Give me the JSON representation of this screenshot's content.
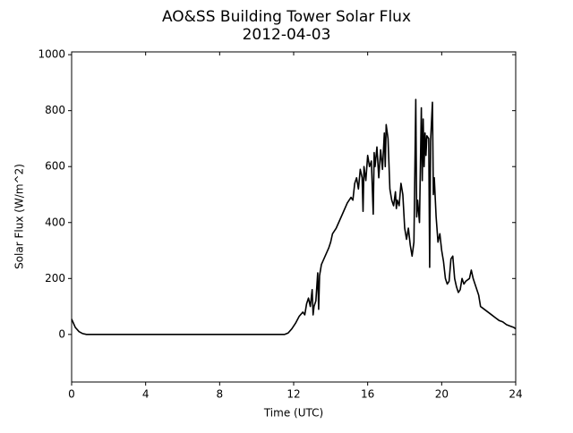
{
  "chart_data": {
    "type": "line",
    "title": "AO&SS Building Tower Solar Flux",
    "subtitle": "2012-04-03",
    "x_label": "Time (UTC)",
    "y_label": "Solar Flux (W/m^2)",
    "xlim": [
      0,
      24
    ],
    "xticks": [
      0,
      4,
      8,
      12,
      16,
      20,
      24
    ],
    "ylim": [
      -170,
      1010
    ],
    "yticks": [
      0,
      200,
      400,
      600,
      800,
      1000
    ],
    "grid": false,
    "series": [
      {
        "name": "Solar Flux",
        "color": "#000000",
        "x": [
          0,
          0.1,
          0.2,
          0.4,
          0.6,
          0.8,
          2,
          4,
          6,
          8,
          10,
          11.5,
          11.7,
          11.9,
          12.1,
          12.3,
          12.5,
          12.6,
          12.7,
          12.8,
          12.9,
          13.0,
          13.05,
          13.1,
          13.2,
          13.3,
          13.35,
          13.4,
          13.5,
          13.7,
          13.9,
          14.0,
          14.1,
          14.3,
          14.5,
          14.7,
          14.9,
          15.1,
          15.2,
          15.3,
          15.4,
          15.5,
          15.6,
          15.7,
          15.75,
          15.8,
          15.9,
          16.0,
          16.1,
          16.2,
          16.3,
          16.35,
          16.4,
          16.5,
          16.6,
          16.7,
          16.8,
          16.9,
          16.95,
          17.0,
          17.1,
          17.2,
          17.3,
          17.4,
          17.5,
          17.55,
          17.6,
          17.7,
          17.8,
          17.9,
          18.0,
          18.1,
          18.2,
          18.3,
          18.4,
          18.5,
          18.6,
          18.65,
          18.7,
          18.8,
          18.9,
          18.95,
          19.0,
          19.05,
          19.1,
          19.15,
          19.2,
          19.3,
          19.35,
          19.4,
          19.5,
          19.55,
          19.6,
          19.7,
          19.8,
          19.9,
          20.0,
          20.1,
          20.2,
          20.3,
          20.4,
          20.5,
          20.6,
          20.7,
          20.8,
          20.9,
          21.0,
          21.1,
          21.2,
          21.3,
          21.5,
          21.6,
          21.7,
          21.8,
          21.9,
          22.0,
          22.1,
          22.3,
          22.5,
          22.7,
          22.9,
          23.1,
          23.3,
          23.5,
          23.7,
          23.9,
          24
        ],
        "values": [
          55,
          40,
          25,
          10,
          3,
          0,
          0,
          0,
          0,
          0,
          0,
          0,
          5,
          20,
          40,
          65,
          80,
          70,
          110,
          130,
          100,
          160,
          70,
          100,
          120,
          220,
          90,
          210,
          250,
          280,
          310,
          330,
          360,
          380,
          410,
          440,
          470,
          490,
          480,
          540,
          560,
          520,
          590,
          560,
          440,
          600,
          550,
          640,
          600,
          620,
          430,
          650,
          600,
          670,
          560,
          660,
          590,
          720,
          600,
          750,
          700,
          520,
          480,
          460,
          510,
          450,
          480,
          460,
          540,
          500,
          380,
          340,
          380,
          320,
          280,
          330,
          840,
          420,
          480,
          400,
          810,
          550,
          770,
          600,
          720,
          640,
          710,
          700,
          240,
          690,
          830,
          500,
          560,
          420,
          330,
          360,
          300,
          260,
          200,
          180,
          190,
          270,
          280,
          200,
          170,
          150,
          160,
          200,
          180,
          190,
          200,
          230,
          200,
          180,
          160,
          140,
          100,
          90,
          80,
          70,
          60,
          50,
          45,
          35,
          30,
          25,
          20
        ]
      }
    ]
  }
}
